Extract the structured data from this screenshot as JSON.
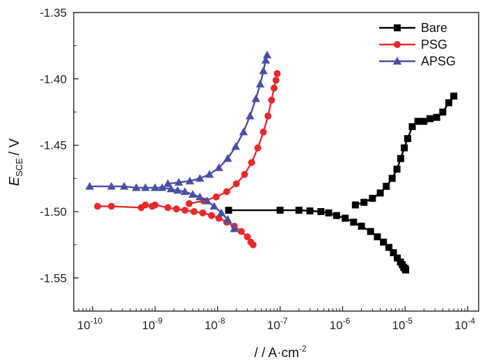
{
  "chart_data": {
    "type": "scatter",
    "xlabel": "/ / A·cm",
    "xlabel_superscript": "-2",
    "ylabel_symbol": "E",
    "ylabel_subscript": "SCE",
    "ylabel_unit": "/ V",
    "x_scale": "log",
    "xlim": [
      5e-11,
      0.00015
    ],
    "ylim": [
      -1.575,
      -1.35
    ],
    "x_tick_labels": [
      {
        "base": "10",
        "exp": "-10"
      },
      {
        "base": "10",
        "exp": "-9"
      },
      {
        "base": "10",
        "exp": "-8"
      },
      {
        "base": "10",
        "exp": "-7"
      },
      {
        "base": "10",
        "exp": "-6"
      },
      {
        "base": "10",
        "exp": "-5"
      },
      {
        "base": "10",
        "exp": "-4"
      }
    ],
    "y_ticks": [
      "-1.35",
      "-1.40",
      "-1.45",
      "-1.50",
      "-1.55"
    ],
    "legend_position": "top-right",
    "grid": false,
    "series": [
      {
        "name": "Bare",
        "color": "#000000",
        "marker": "square",
        "x": [
          1.5e-08,
          1e-07,
          2e-07,
          3e-07,
          4.5e-07,
          6e-07,
          8e-07,
          1.1e-06,
          1.5e-06,
          2e-06,
          2.8e-06,
          3.6e-06,
          4.5e-06,
          5.5e-06,
          6.5e-06,
          7.5e-06,
          8.4e-06,
          9e-06,
          9.5e-06,
          1e-05,
          1.02e-05,
          1.6e-06,
          2.2e-06,
          3e-06,
          4e-06,
          5e-06,
          6.2e-06,
          7.4e-06,
          8.5e-06,
          9.7e-06,
          1.1e-05,
          1.3e-05,
          1.6e-05,
          2e-05,
          2.5e-05,
          3.2e-05,
          4e-05,
          5e-05,
          6e-05
        ],
        "y": [
          -1.499,
          -1.499,
          -1.499,
          -1.4995,
          -1.5,
          -1.501,
          -1.503,
          -1.505,
          -1.508,
          -1.511,
          -1.515,
          -1.519,
          -1.523,
          -1.527,
          -1.531,
          -1.535,
          -1.538,
          -1.54,
          -1.542,
          -1.543,
          -1.544,
          -1.495,
          -1.493,
          -1.49,
          -1.486,
          -1.481,
          -1.475,
          -1.468,
          -1.46,
          -1.452,
          -1.445,
          -1.436,
          -1.432,
          -1.432,
          -1.43,
          -1.429,
          -1.425,
          -1.418,
          -1.413
        ]
      },
      {
        "name": "PSG",
        "color": "#e8292b",
        "marker": "circle",
        "x": [
          1.2e-10,
          2e-10,
          6e-10,
          7e-10,
          9e-10,
          1e-09,
          1.6e-09,
          2.2e-09,
          3e-09,
          4.2e-09,
          5.8e-09,
          8e-09,
          1.05e-08,
          1.4e-08,
          1.85e-08,
          2.4e-08,
          3e-08,
          3.4e-08,
          3.7e-08,
          3.5e-09,
          6e-09,
          9.5e-09,
          1.4e-08,
          2e-08,
          2.7e-08,
          3.5e-08,
          4.4e-08,
          5.4e-08,
          6.4e-08,
          7.3e-08,
          8e-08,
          8.6e-08,
          9e-08
        ],
        "y": [
          -1.496,
          -1.496,
          -1.497,
          -1.495,
          -1.496,
          -1.495,
          -1.497,
          -1.498,
          -1.499,
          -1.5,
          -1.501,
          -1.503,
          -1.505,
          -1.508,
          -1.511,
          -1.515,
          -1.519,
          -1.523,
          -1.525,
          -1.494,
          -1.492,
          -1.489,
          -1.485,
          -1.479,
          -1.472,
          -1.463,
          -1.452,
          -1.44,
          -1.428,
          -1.416,
          -1.407,
          -1.401,
          -1.396
        ]
      },
      {
        "name": "APSG",
        "color": "#4a4fa3",
        "marker": "triangle",
        "x": [
          9e-11,
          2e-10,
          3.2e-10,
          5e-10,
          7e-10,
          1e-09,
          1.3e-09,
          1.8e-09,
          2.3e-09,
          3e-09,
          4e-09,
          5.2e-09,
          6.8e-09,
          8.8e-09,
          1.15e-08,
          1.45e-08,
          1.85e-08,
          1.6e-09,
          2.4e-09,
          3.6e-09,
          5.2e-09,
          7.4e-09,
          1.05e-08,
          1.45e-08,
          1.95e-08,
          2.6e-08,
          3.3e-08,
          4.1e-08,
          4.8e-08,
          5.4e-08,
          5.9e-08,
          6.2e-08
        ],
        "y": [
          -1.481,
          -1.481,
          -1.481,
          -1.482,
          -1.482,
          -1.482,
          -1.482,
          -1.483,
          -1.484,
          -1.485,
          -1.487,
          -1.489,
          -1.492,
          -1.496,
          -1.501,
          -1.506,
          -1.513,
          -1.479,
          -1.478,
          -1.477,
          -1.475,
          -1.472,
          -1.467,
          -1.46,
          -1.451,
          -1.44,
          -1.428,
          -1.415,
          -1.404,
          -1.394,
          -1.386,
          -1.382
        ]
      }
    ]
  }
}
